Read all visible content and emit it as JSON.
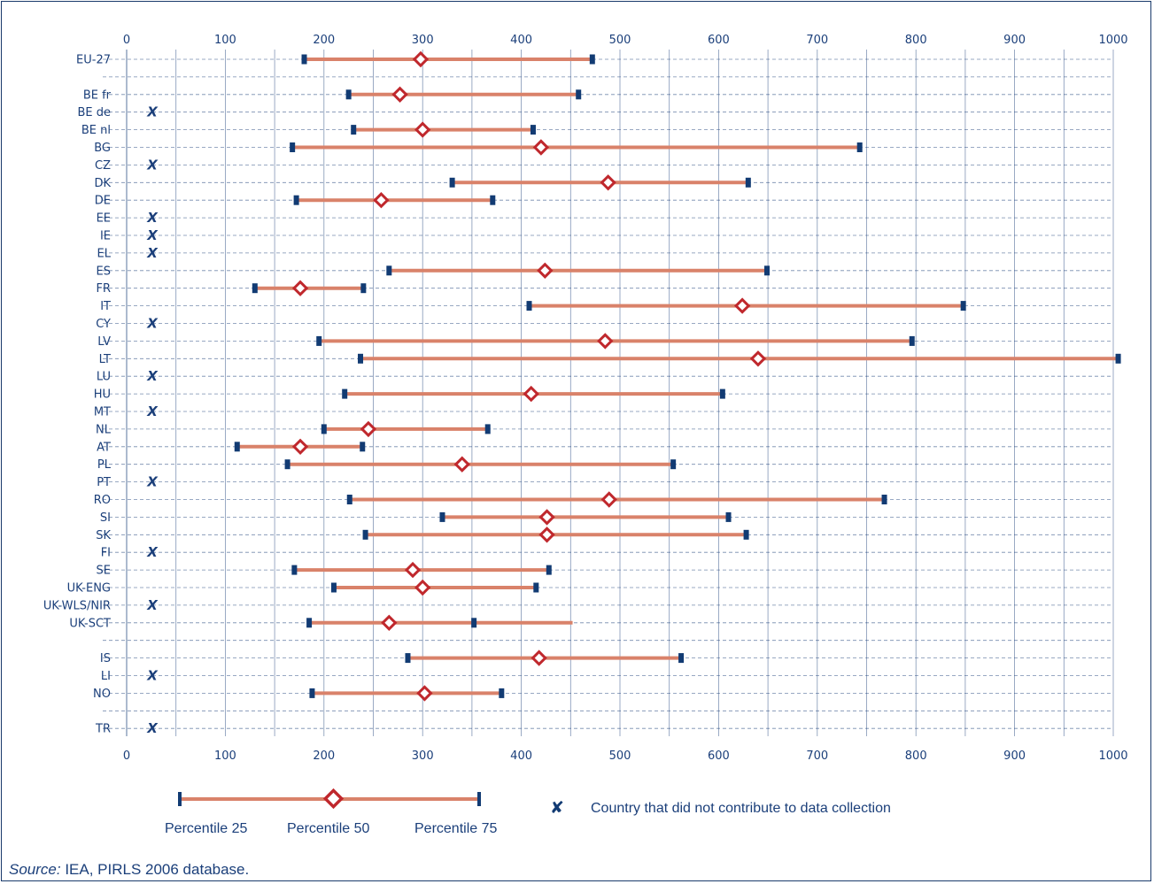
{
  "chart_data": {
    "type": "range",
    "xlim": [
      0,
      1000
    ],
    "x_ticks": [
      "0",
      "100",
      "200",
      "300",
      "400",
      "500",
      "600",
      "700",
      "800",
      "900",
      "1000"
    ],
    "colors": {
      "bar": "#d9826a",
      "endpoint": "#123b73",
      "median": "#c0282d",
      "text": "#1b3f7a",
      "grid": "#1b3f7a"
    },
    "rows": [
      {
        "label": "EU-27",
        "p25": 180,
        "p50": 298,
        "p75": 472
      },
      {
        "label": "",
        "gap": true
      },
      {
        "label": "BE fr",
        "p25": 225,
        "p50": 277,
        "p75": 458
      },
      {
        "label": "BE de",
        "missing": true
      },
      {
        "label": "BE nl",
        "p25": 230,
        "p50": 300,
        "p75": 412
      },
      {
        "label": "BG",
        "p25": 168,
        "p50": 420,
        "p75": 743
      },
      {
        "label": "CZ",
        "missing": true
      },
      {
        "label": "DK",
        "p25": 330,
        "p50": 488,
        "p75": 630
      },
      {
        "label": "DE",
        "p25": 172,
        "p50": 258,
        "p75": 371
      },
      {
        "label": "EE",
        "missing": true
      },
      {
        "label": "IE",
        "missing": true
      },
      {
        "label": "EL",
        "missing": true
      },
      {
        "label": "ES",
        "p25": 266,
        "p50": 424,
        "p75": 649
      },
      {
        "label": "FR",
        "p25": 130,
        "p50": 176,
        "p75": 240
      },
      {
        "label": "IT",
        "p25": 408,
        "p50": 624,
        "p75": 848
      },
      {
        "label": "CY",
        "missing": true
      },
      {
        "label": "LV",
        "p25": 195,
        "p50": 485,
        "p75": 796
      },
      {
        "label": "LT",
        "p25": 237,
        "p50": 640,
        "p75": 1005
      },
      {
        "label": "LU",
        "missing": true
      },
      {
        "label": "HU",
        "p25": 221,
        "p50": 410,
        "p75": 604
      },
      {
        "label": "MT",
        "missing": true
      },
      {
        "label": "NL",
        "p25": 200,
        "p50": 245,
        "p75": 366
      },
      {
        "label": "AT",
        "p25": 112,
        "p50": 176,
        "p75": 239
      },
      {
        "label": "PL",
        "p25": 163,
        "p50": 340,
        "p75": 554
      },
      {
        "label": "PT",
        "missing": true
      },
      {
        "label": "RO",
        "p25": 226,
        "p50": 489,
        "p75": 768
      },
      {
        "label": "SI",
        "p25": 320,
        "p50": 426,
        "p75": 610
      },
      {
        "label": "SK",
        "p25": 242,
        "p50": 426,
        "p75": 628
      },
      {
        "label": "FI",
        "missing": true
      },
      {
        "label": "SE",
        "p25": 170,
        "p50": 290,
        "p75": 428
      },
      {
        "label": "UK-ENG",
        "p25": 210,
        "p50": 300,
        "p75": 415
      },
      {
        "label": "UK-WLS/NIR",
        "missing": true
      },
      {
        "label": "UK-SCT",
        "p25": 185,
        "p50": 266,
        "p75": 352,
        "tail": 452
      },
      {
        "label": "",
        "gap": true
      },
      {
        "label": "IS",
        "p25": 285,
        "p50": 418,
        "p75": 562
      },
      {
        "label": "LI",
        "missing": true
      },
      {
        "label": "NO",
        "p25": 188,
        "p50": 302,
        "p75": 380
      },
      {
        "label": "",
        "gap": true
      },
      {
        "label": "TR",
        "missing": true
      }
    ],
    "missing_mark": "X"
  },
  "legend": {
    "p25_label": "Percentile 25",
    "p50_label": "Percentile 50",
    "p75_label": "Percentile 75",
    "missing_mark": "✘",
    "missing_label": "Country that did not contribute to data collection"
  },
  "source": {
    "prefix": "Source:",
    "text": " IEA, PIRLS 2006 database."
  }
}
